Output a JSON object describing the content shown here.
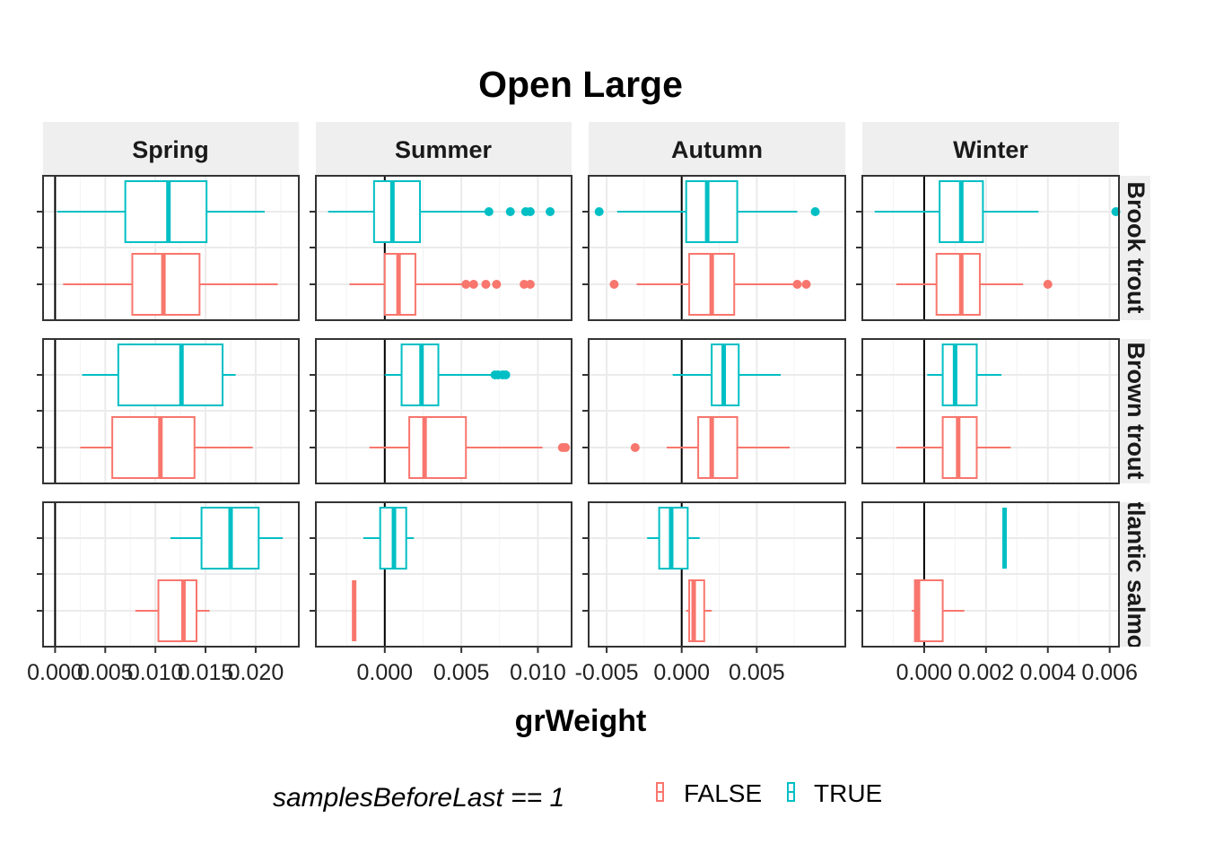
{
  "title": "Open Large",
  "xlabel": "grWeight",
  "legend": {
    "title": "samplesBeforeLast == 1",
    "entries": [
      {
        "label": "FALSE",
        "color": "#F8766D"
      },
      {
        "label": "TRUE",
        "color": "#00BFC4"
      }
    ],
    "placement": "bottom"
  },
  "columns": [
    "Spring",
    "Summer",
    "Autumn",
    "Winter"
  ],
  "rows": [
    "Brook trout",
    "Brown trout",
    "Atlantic salmon"
  ],
  "colors": {
    "FALSE": "#F8766D",
    "TRUE": "#00BFC4",
    "strip": "#efefef",
    "grid": "#ebebeb"
  },
  "chart_data": {
    "type": "boxplot",
    "orientation": "horizontal",
    "facets": "rows x columns, free x scales",
    "reference_line_x": 0,
    "xaxes": [
      {
        "col": "Spring",
        "range": [
          -0.0012,
          0.0243
        ],
        "ticks": [
          0.0,
          0.005,
          0.01,
          0.015,
          0.02
        ],
        "tick_labels": [
          "0.000",
          "0.005",
          "0.010",
          "0.015",
          "0.020"
        ]
      },
      {
        "col": "Summer",
        "range": [
          -0.0045,
          0.0122
        ],
        "ticks": [
          0.0,
          0.005,
          0.01
        ],
        "tick_labels": [
          "0.000",
          "0.005",
          "0.010"
        ]
      },
      {
        "col": "Autumn",
        "range": [
          -0.0062,
          0.0109
        ],
        "ticks": [
          -0.005,
          0.0,
          0.005
        ],
        "tick_labels": [
          "-0.005",
          "0.000",
          "0.005"
        ]
      },
      {
        "col": "Winter",
        "range": [
          -0.002,
          0.0063
        ],
        "ticks": [
          0.0,
          0.002,
          0.004,
          0.006
        ],
        "tick_labels": [
          "0.000",
          "0.002",
          "0.004",
          "0.006"
        ]
      }
    ],
    "series": [
      {
        "name": "FALSE",
        "boxes": [
          {
            "row": "Brook trout",
            "col": "Spring",
            "lo": 0.0008,
            "q1": 0.0077,
            "med": 0.0108,
            "q3": 0.0144,
            "hi": 0.0222,
            "out": []
          },
          {
            "row": "Brook trout",
            "col": "Summer",
            "lo": -0.0023,
            "q1": 0.0,
            "med": 0.0009,
            "q3": 0.002,
            "hi": 0.0052,
            "out": [
              0.0053,
              0.0058,
              0.0066,
              0.0073,
              0.0091,
              0.0095
            ]
          },
          {
            "row": "Brook trout",
            "col": "Autumn",
            "lo": -0.003,
            "q1": 0.0005,
            "med": 0.002,
            "q3": 0.0035,
            "hi": 0.0075,
            "out": [
              -0.0045,
              0.0077,
              0.0083
            ]
          },
          {
            "row": "Brook trout",
            "col": "Winter",
            "lo": -0.0009,
            "q1": 0.0004,
            "med": 0.0012,
            "q3": 0.0018,
            "hi": 0.0032,
            "out": [
              0.004
            ]
          },
          {
            "row": "Brown trout",
            "col": "Spring",
            "lo": 0.0025,
            "q1": 0.0057,
            "med": 0.0105,
            "q3": 0.0139,
            "hi": 0.0197,
            "out": []
          },
          {
            "row": "Brown trout",
            "col": "Summer",
            "lo": -0.001,
            "q1": 0.0016,
            "med": 0.0026,
            "q3": 0.0053,
            "hi": 0.0103,
            "out": [
              0.0116,
              0.0118
            ]
          },
          {
            "row": "Brown trout",
            "col": "Autumn",
            "lo": -0.001,
            "q1": 0.0011,
            "med": 0.002,
            "q3": 0.0037,
            "hi": 0.0072,
            "out": [
              -0.0031
            ]
          },
          {
            "row": "Brown trout",
            "col": "Winter",
            "lo": -0.0009,
            "q1": 0.0006,
            "med": 0.0011,
            "q3": 0.0017,
            "hi": 0.0028,
            "out": []
          },
          {
            "row": "Atlantic salmon",
            "col": "Spring",
            "lo": 0.008,
            "q1": 0.0103,
            "med": 0.0128,
            "q3": 0.0141,
            "hi": 0.0154,
            "out": []
          },
          {
            "row": "Atlantic salmon",
            "col": "Summer",
            "lo": -0.002,
            "q1": -0.002,
            "med": -0.002,
            "q3": -0.002,
            "hi": -0.002,
            "out": []
          },
          {
            "row": "Atlantic salmon",
            "col": "Autumn",
            "lo": 0.0003,
            "q1": 0.0005,
            "med": 0.0008,
            "q3": 0.0015,
            "hi": 0.002,
            "out": []
          },
          {
            "row": "Atlantic salmon",
            "col": "Winter",
            "lo": -0.0004,
            "q1": -0.0003,
            "med": -0.0002,
            "q3": 0.0006,
            "hi": 0.0013,
            "out": []
          }
        ]
      },
      {
        "name": "TRUE",
        "boxes": [
          {
            "row": "Brook trout",
            "col": "Spring",
            "lo": 0.0002,
            "q1": 0.007,
            "med": 0.0113,
            "q3": 0.0151,
            "hi": 0.0209,
            "out": []
          },
          {
            "row": "Brook trout",
            "col": "Summer",
            "lo": -0.0037,
            "q1": -0.0007,
            "med": 0.0005,
            "q3": 0.0023,
            "hi": 0.0066,
            "out": [
              0.0068,
              0.0082,
              0.0092,
              0.0095,
              0.0108
            ]
          },
          {
            "row": "Brook trout",
            "col": "Autumn",
            "lo": -0.0043,
            "q1": 0.0003,
            "med": 0.0017,
            "q3": 0.0037,
            "hi": 0.0077,
            "out": [
              -0.0055,
              0.0089
            ]
          },
          {
            "row": "Brook trout",
            "col": "Winter",
            "lo": -0.0016,
            "q1": 0.0005,
            "med": 0.0012,
            "q3": 0.0019,
            "hi": 0.0037,
            "out": [
              0.0062
            ]
          },
          {
            "row": "Brown trout",
            "col": "Spring",
            "lo": 0.0027,
            "q1": 0.0063,
            "med": 0.0126,
            "q3": 0.0167,
            "hi": 0.018,
            "out": []
          },
          {
            "row": "Brown trout",
            "col": "Summer",
            "lo": 0.0,
            "q1": 0.0011,
            "med": 0.0024,
            "q3": 0.0035,
            "hi": 0.0071,
            "out": [
              0.0072,
              0.0074,
              0.0077,
              0.0079
            ]
          },
          {
            "row": "Brown trout",
            "col": "Autumn",
            "lo": -0.0006,
            "q1": 0.002,
            "med": 0.0028,
            "q3": 0.0038,
            "hi": 0.0066,
            "out": []
          },
          {
            "row": "Brown trout",
            "col": "Winter",
            "lo": 0.0001,
            "q1": 0.0006,
            "med": 0.001,
            "q3": 0.0017,
            "hi": 0.0025,
            "out": []
          },
          {
            "row": "Atlantic salmon",
            "col": "Spring",
            "lo": 0.0115,
            "q1": 0.0146,
            "med": 0.0175,
            "q3": 0.0203,
            "hi": 0.0227,
            "out": []
          },
          {
            "row": "Atlantic salmon",
            "col": "Summer",
            "lo": -0.0014,
            "q1": -0.0003,
            "med": 0.0006,
            "q3": 0.0014,
            "hi": 0.0019,
            "out": []
          },
          {
            "row": "Atlantic salmon",
            "col": "Autumn",
            "lo": -0.0023,
            "q1": -0.0015,
            "med": -0.0007,
            "q3": 0.0004,
            "hi": 0.0012,
            "out": []
          },
          {
            "row": "Atlantic salmon",
            "col": "Winter",
            "lo": 0.0026,
            "q1": 0.0026,
            "med": 0.0026,
            "q3": 0.0026,
            "hi": 0.0026,
            "out": []
          }
        ]
      }
    ]
  }
}
